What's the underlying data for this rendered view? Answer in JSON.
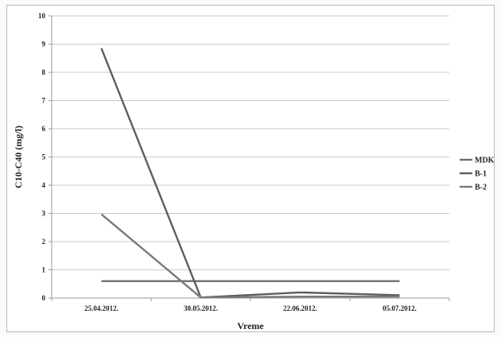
{
  "chart_data": {
    "type": "line",
    "categories": [
      "25.04.2012.",
      "30.05.2012.",
      "22.06.2012.",
      "05.07.2012."
    ],
    "xlabel": "Vreme",
    "ylabel": "C10-C40 (mg/l)",
    "ylim": [
      0,
      10
    ],
    "yticks": [
      0,
      1,
      2,
      3,
      4,
      5,
      6,
      7,
      8,
      9,
      10
    ],
    "grid": true,
    "legend_position": "right",
    "series": [
      {
        "name": "MDK",
        "values": [
          0.6,
          0.6,
          0.6,
          0.6
        ],
        "color": "#6f6f6f"
      },
      {
        "name": "B-1",
        "values": [
          8.85,
          0.02,
          0.2,
          0.1
        ],
        "color": "#5d5d5d"
      },
      {
        "name": "B-2",
        "values": [
          2.97,
          0.02,
          0.05,
          0.05
        ],
        "color": "#7a7a7a"
      }
    ]
  }
}
